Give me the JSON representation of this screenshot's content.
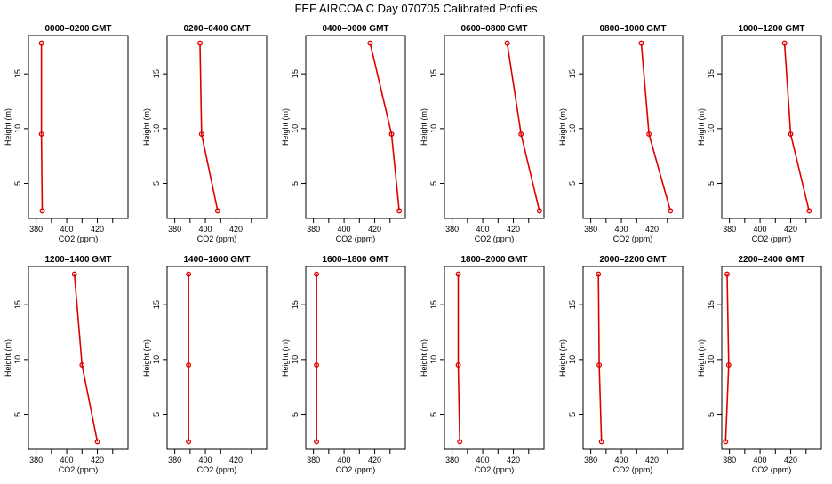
{
  "title": "FEF AIRCOA C  Day 070705  Calibrated Profiles",
  "colors": {
    "series": "#dd0000",
    "axis": "#000000",
    "background": "#ffffff"
  },
  "chart_data": {
    "type": "line",
    "layout": "2x6 grid of small multiples",
    "xlabel": "CO2 (ppm)",
    "ylabel": "Height (m)",
    "xlim": [
      375,
      440
    ],
    "ylim": [
      1.8,
      18.5
    ],
    "xticks": [
      380,
      400,
      420
    ],
    "yticks": [
      5,
      10,
      15
    ],
    "heights": [
      2.5,
      9.5,
      17.8
    ],
    "panels": [
      {
        "title": "0000–0200 GMT",
        "co2": [
          384,
          383.5,
          383.5
        ]
      },
      {
        "title": "0200–0400 GMT",
        "co2": [
          408,
          397.5,
          396.5
        ]
      },
      {
        "title": "0400–0600 GMT",
        "co2": [
          436,
          431,
          417
        ]
      },
      {
        "title": "0600–0800 GMT",
        "co2": [
          437,
          425,
          416
        ]
      },
      {
        "title": "0800–1000 GMT",
        "co2": [
          432,
          418,
          413
        ]
      },
      {
        "title": "1000–1200 GMT",
        "co2": [
          432,
          420,
          416
        ]
      },
      {
        "title": "1200–1400 GMT",
        "co2": [
          420,
          410,
          405
        ]
      },
      {
        "title": "1400–1600 GMT",
        "co2": [
          389,
          389,
          389
        ]
      },
      {
        "title": "1600–1800 GMT",
        "co2": [
          382,
          382,
          382
        ]
      },
      {
        "title": "1800–2000 GMT",
        "co2": [
          385,
          384,
          384
        ]
      },
      {
        "title": "2000–2200 GMT",
        "co2": [
          387,
          385.5,
          385
        ]
      },
      {
        "title": "2200–2400 GMT",
        "co2": [
          377.5,
          379.5,
          378.5
        ]
      }
    ]
  }
}
